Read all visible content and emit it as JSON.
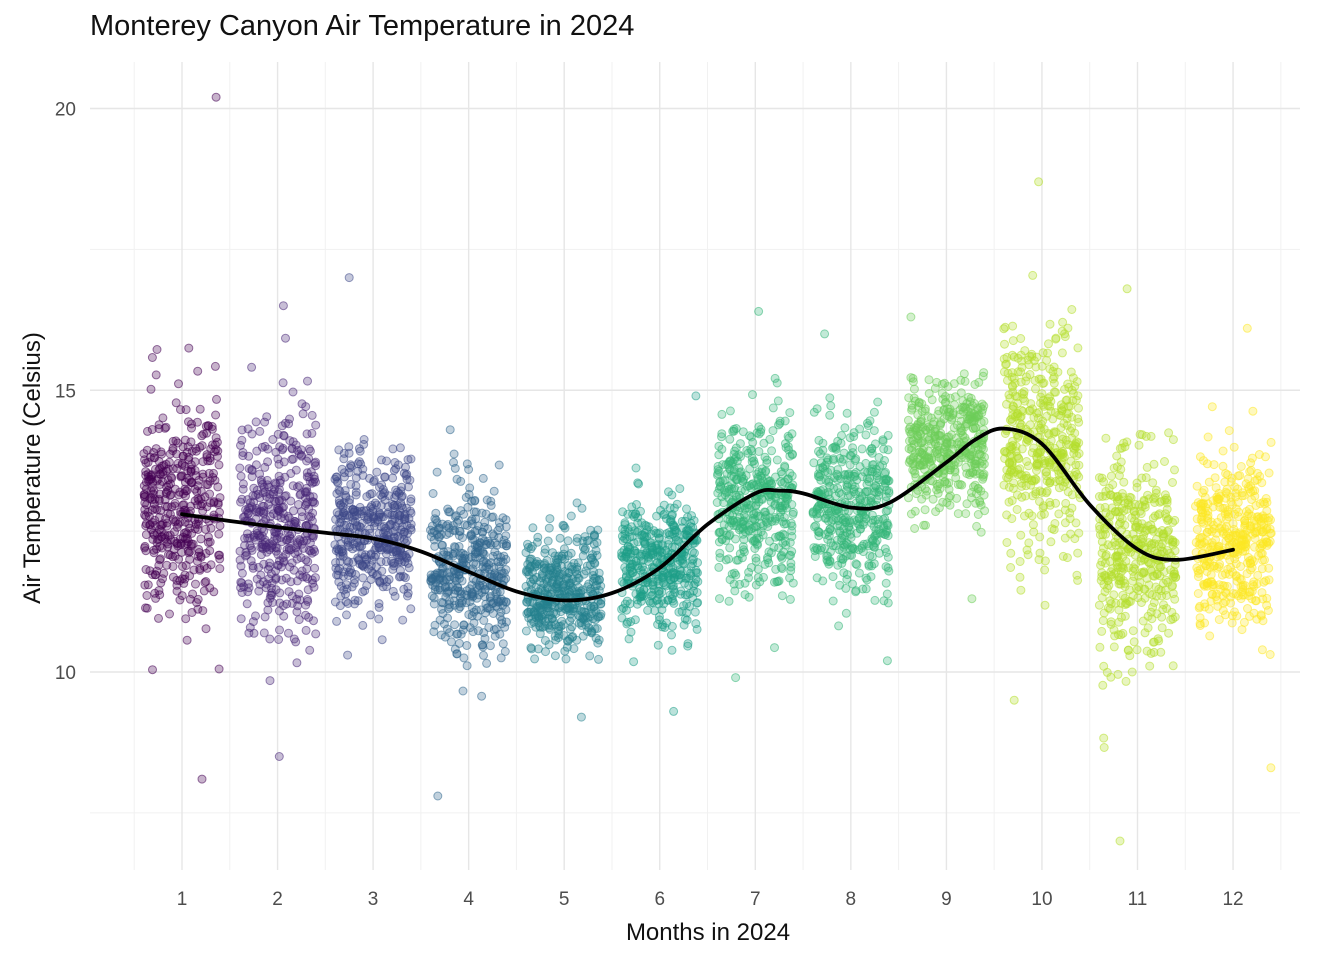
{
  "chart_data": {
    "type": "scatter",
    "title": "Monterey Canyon Air Temperature in 2024",
    "xlabel": "Months in 2024",
    "ylabel": "Air Temperature (Celsius)",
    "x_categories": [
      "1",
      "2",
      "3",
      "4",
      "5",
      "6",
      "7",
      "8",
      "9",
      "10",
      "11",
      "12"
    ],
    "y_ticks": [
      "10",
      "15",
      "20"
    ],
    "ylim": [
      6.95,
      20.35
    ],
    "grid": true,
    "legend": "none",
    "point_colors": [
      "#440154",
      "#482878",
      "#3E4989",
      "#31688E",
      "#26828E",
      "#1F9E89",
      "#35B779",
      "#35B779",
      "#6DCD59",
      "#B4DE2C",
      "#B4DE2C",
      "#FDE725"
    ],
    "point_opacity": 0.3,
    "monthly_summary": [
      {
        "month": 1,
        "center": 13.0,
        "spread": 1.55,
        "min": 8.1,
        "max": 20.2
      },
      {
        "month": 2,
        "center": 12.6,
        "spread": 1.55,
        "min": 8.5,
        "max": 16.5
      },
      {
        "month": 3,
        "center": 12.5,
        "spread": 1.1,
        "min": 10.3,
        "max": 17.0
      },
      {
        "month": 4,
        "center": 11.8,
        "spread": 1.15,
        "min": 7.8,
        "max": 14.3
      },
      {
        "month": 5,
        "center": 11.4,
        "spread": 0.85,
        "min": 9.2,
        "max": 13.0
      },
      {
        "month": 6,
        "center": 11.9,
        "spread": 0.95,
        "min": 9.3,
        "max": 14.9
      },
      {
        "month": 7,
        "center": 13.0,
        "spread": 1.2,
        "min": 9.9,
        "max": 16.4
      },
      {
        "month": 8,
        "center": 12.9,
        "spread": 1.15,
        "min": 10.2,
        "max": 16.0
      },
      {
        "month": 9,
        "center": 14.0,
        "spread": 0.95,
        "min": 11.3,
        "max": 16.3
      },
      {
        "month": 10,
        "center": 14.1,
        "spread": 1.6,
        "min": 9.5,
        "max": 18.7
      },
      {
        "month": 11,
        "center": 12.1,
        "spread": 1.45,
        "min": 7.0,
        "max": 16.8
      },
      {
        "month": 12,
        "center": 12.3,
        "spread": 1.15,
        "min": 8.3,
        "max": 16.1
      }
    ],
    "smooth_line": {
      "x": [
        1,
        1.5,
        2,
        2.5,
        3,
        3.5,
        4,
        4.5,
        5,
        5.5,
        6,
        6.5,
        7,
        7.25,
        7.5,
        8,
        8.4,
        9,
        9.3,
        9.6,
        10,
        10.5,
        11,
        11.4,
        12
      ],
      "y": [
        12.8,
        12.68,
        12.57,
        12.47,
        12.37,
        12.14,
        11.78,
        11.43,
        11.27,
        11.4,
        11.85,
        12.62,
        13.17,
        13.22,
        13.17,
        12.92,
        13.0,
        13.72,
        14.12,
        14.32,
        14.05,
        12.97,
        12.18,
        11.99,
        12.17
      ]
    }
  }
}
